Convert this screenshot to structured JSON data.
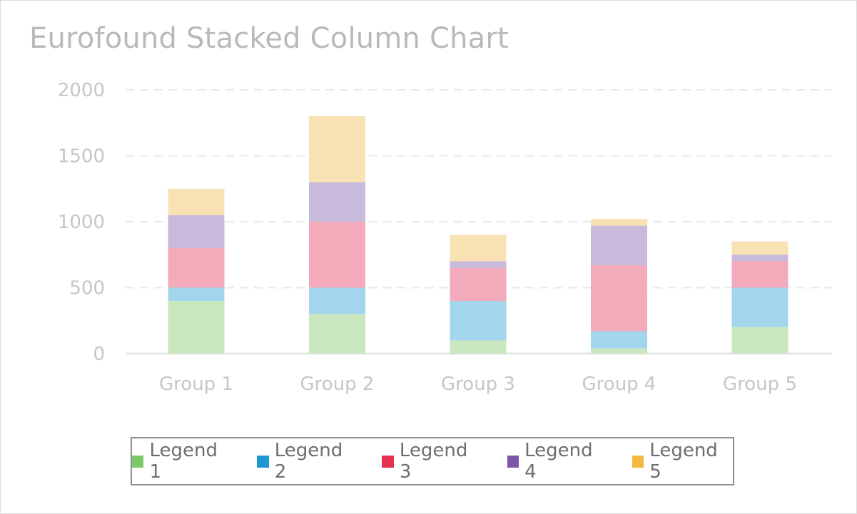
{
  "chart_data": {
    "type": "bar",
    "stacked": true,
    "title": "Eurofound Stacked Column Chart",
    "xlabel": "",
    "ylabel": "",
    "ylim": [
      0,
      2000
    ],
    "yticks": [
      0,
      500,
      1000,
      1500,
      2000
    ],
    "grid": true,
    "legend_position": "bottom",
    "categories": [
      "Group 1",
      "Group 2",
      "Group 3",
      "Group 4",
      "Group 5"
    ],
    "series": [
      {
        "name": "Legend 1",
        "color": "#7dc96a",
        "fill": "#cae8c0",
        "values": [
          400,
          300,
          100,
          40,
          200
        ]
      },
      {
        "name": "Legend 2",
        "color": "#1f97d4",
        "fill": "#a3d6ec",
        "values": [
          100,
          200,
          300,
          130,
          300
        ]
      },
      {
        "name": "Legend 3",
        "color": "#e53050",
        "fill": "#f3aaba",
        "values": [
          300,
          500,
          250,
          500,
          200
        ]
      },
      {
        "name": "Legend 4",
        "color": "#7c57a8",
        "fill": "#c8bada",
        "values": [
          250,
          300,
          50,
          300,
          50
        ]
      },
      {
        "name": "Legend 5",
        "color": "#f1b940",
        "fill": "#f8e2b4",
        "values": [
          200,
          500,
          200,
          50,
          100
        ]
      }
    ]
  }
}
